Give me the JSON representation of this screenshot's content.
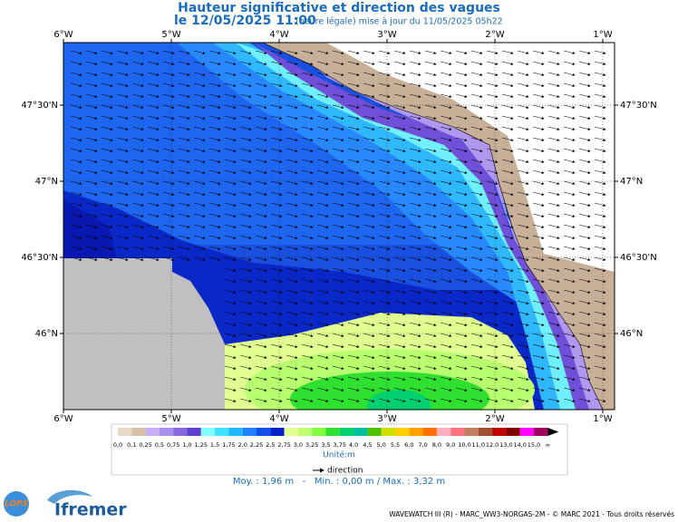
{
  "title": "Hauteur significative et direction des vagues",
  "subtitle": {
    "date": "le 12/05/2025 11:00",
    "note": "(heure légale) mise à jour du 11/05/2025 05h22"
  },
  "longitudes": [
    "6°W",
    "5°W",
    "4°W",
    "3°W",
    "2°W",
    "1°W"
  ],
  "latitudes": [
    "47°30'N",
    "47°N",
    "46°30'N",
    "46°N"
  ],
  "legend": {
    "labels": [
      "0,0",
      "0,1",
      "0,25",
      "0,5",
      "0,75",
      "1,0",
      "1,25",
      "1,5",
      "1,75",
      "2,0",
      "2,25",
      "2,5",
      "2,75",
      "3,0",
      "3,25",
      "3,5",
      "3,75",
      "4,0",
      "4,5",
      "5,0",
      "5,5",
      "6,0",
      "7,0",
      "8,0",
      "9,0",
      "10,0",
      "11,0",
      "12,0",
      "13,0",
      "14,0",
      "15,0",
      "∞"
    ],
    "colors": [
      "#e8d8c8",
      "#d8c0a8",
      "#c8b0f8",
      "#a890f0",
      "#8868e0",
      "#6040d0",
      "#80ffff",
      "#40e0ff",
      "#20b8ff",
      "#2080ff",
      "#1050e8",
      "#0020c8",
      "#e0ff90",
      "#c0ff70",
      "#80ff40",
      "#30e030",
      "#00d070",
      "#00c0a0",
      "#50c000",
      "#d0e000",
      "#ffd000",
      "#ffa000",
      "#ff7000",
      "#ffb0c0",
      "#ff7080",
      "#c08060",
      "#a05030",
      "#c00000",
      "#800000",
      "#ff00ff",
      "#a00060"
    ],
    "unit": "Unité:m"
  },
  "direction": "direction",
  "stats": "Moy. : 1,96 m   -   Min. : 0,00 m / Max. : 3,32 m",
  "logos": {
    "lops": "LOPS",
    "ifremer": "Ifremer"
  },
  "footer": "WAVEWATCH III (R) - MARC_WW3-NORGAS-2M - © MARC 2021 - Tous droits réservés"
}
